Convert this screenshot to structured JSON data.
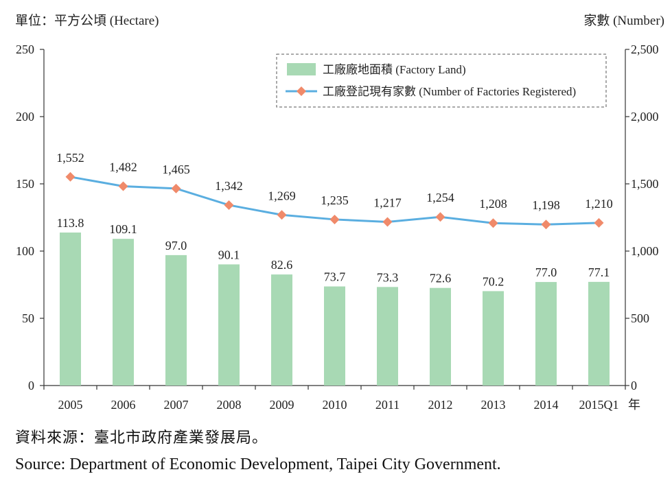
{
  "chart_data": {
    "type": "bar+line",
    "left_axis_label": "單位：平方公頃 (Hectare)",
    "right_axis_label": "家數 (Number)",
    "categories": [
      "2005",
      "2006",
      "2007",
      "2008",
      "2009",
      "2010",
      "2011",
      "2012",
      "2013",
      "2014",
      "2015Q1"
    ],
    "x_suffix": "年",
    "left_ticks": [
      "0",
      "50",
      "100",
      "150",
      "200",
      "250"
    ],
    "right_ticks": [
      "0",
      "500",
      "1,000",
      "1,500",
      "2,000",
      "2,500"
    ],
    "ylim_left": [
      0,
      250
    ],
    "ylim_right": [
      0,
      2500
    ],
    "series": [
      {
        "name": "工廠廠地面積 (Factory Land)",
        "type": "bar",
        "axis": "left",
        "color": "#a8d9b4",
        "values": [
          113.8,
          109.1,
          97.0,
          90.1,
          82.6,
          73.7,
          73.3,
          72.6,
          70.2,
          77.0,
          77.1
        ],
        "labels": [
          "113.8",
          "109.1",
          "97.0",
          "90.1",
          "82.6",
          "73.7",
          "73.3",
          "72.6",
          "70.2",
          "77.0",
          "77.1"
        ]
      },
      {
        "name": "工廠登記現有家數 (Number of Factories Registered)",
        "type": "line",
        "axis": "right",
        "color": "#5aaee0",
        "marker_color": "#f08a6a",
        "values": [
          1552,
          1482,
          1465,
          1342,
          1269,
          1235,
          1217,
          1254,
          1208,
          1198,
          1210
        ],
        "labels": [
          "1,552",
          "1,482",
          "1,465",
          "1,342",
          "1,269",
          "1,235",
          "1,217",
          "1,254",
          "1,208",
          "1,198",
          "1,210"
        ]
      }
    ],
    "legend_position": "top-right"
  },
  "source": {
    "chinese": "資料來源：臺北市政府產業發展局。",
    "english": "Source: Department of Economic Development, Taipei City Government."
  }
}
